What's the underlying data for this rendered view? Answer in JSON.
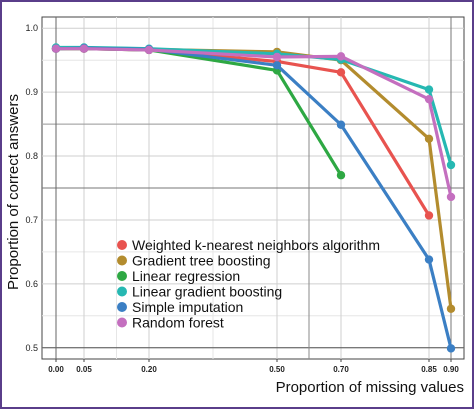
{
  "chart_data": {
    "type": "line",
    "xlabel": "Proportion of missing values",
    "ylabel": "Proportion of correct answers",
    "x": [
      0.0,
      0.05,
      0.2,
      0.5,
      0.7,
      0.85,
      0.9
    ],
    "xticks": [
      {
        "value": 0.0,
        "label": "0.00"
      },
      {
        "value": 0.05,
        "label": "0.05"
      },
      {
        "value": 0.2,
        "label": "0.20"
      },
      {
        "value": 0.5,
        "label": "0.50"
      },
      {
        "value": 0.7,
        "label": "0.70"
      },
      {
        "value": 0.85,
        "label": "0.85"
      },
      {
        "value": 0.9,
        "label": "0.90"
      }
    ],
    "yticks": [
      {
        "value": 1.0,
        "label": "1.0"
      },
      {
        "value": 0.9,
        "label": "0.9"
      },
      {
        "value": 0.8,
        "label": "0.8"
      },
      {
        "value": 0.7,
        "label": "0.7"
      },
      {
        "value": 0.6,
        "label": "0.6"
      },
      {
        "value": 0.5,
        "label": "0.5"
      }
    ],
    "ylim": [
      0.5,
      1.0
    ],
    "grid": true,
    "legend_position": "bottom-center",
    "series": [
      {
        "name": "Weighted k-nearest neighbors algorithm",
        "color": "#e8534f",
        "values": [
          0.968,
          0.968,
          0.966,
          0.948,
          0.931,
          0.707,
          null
        ]
      },
      {
        "name": "Gradient tree boosting",
        "color": "#b38c2e",
        "values": [
          0.968,
          0.969,
          0.967,
          0.963,
          0.95,
          0.827,
          0.561
        ]
      },
      {
        "name": "Linear regression",
        "color": "#2ea843",
        "values": [
          0.968,
          0.968,
          0.966,
          0.934,
          0.77,
          null,
          null
        ]
      },
      {
        "name": "Linear gradient boosting",
        "color": "#26b8b2",
        "values": [
          0.97,
          0.97,
          0.968,
          0.96,
          0.951,
          0.904,
          0.786
        ]
      },
      {
        "name": "Simple imputation",
        "color": "#3b7fc4",
        "values": [
          0.968,
          0.969,
          0.967,
          0.942,
          0.849,
          0.638,
          0.499
        ]
      },
      {
        "name": "Random forest",
        "color": "#c46fbf",
        "values": [
          0.968,
          0.968,
          0.966,
          0.955,
          0.956,
          0.889,
          0.736
        ]
      }
    ]
  }
}
